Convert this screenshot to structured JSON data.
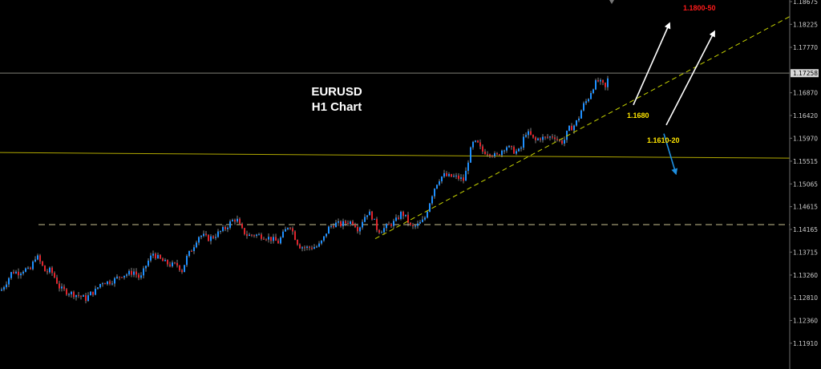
{
  "page": {
    "title_line1": "EURUSD",
    "title_line2": "H1 Chart"
  },
  "annotations": {
    "target_label": "1.1800-50",
    "support_label_1": "1.1680",
    "support_label_2": "1.1610-20"
  },
  "colors": {
    "background": "#000000",
    "bull_candle": "#1e90ff",
    "bear_candle": "#e0242c",
    "wick": "#dddddd",
    "trendline": "#c8d400",
    "resistance_line": "#b0a800",
    "dashed_support": "#c8c090",
    "current_price_line": "#808078",
    "target_label": "#ff1a1a",
    "support_label": "#ffe600",
    "arrow_up": "#ffffff",
    "arrow_down": "#1e8fe0",
    "axis_text": "#d0d0d0"
  },
  "chart_data": {
    "type": "candlestick",
    "symbol": "EURUSD",
    "timeframe": "H1",
    "ylim": [
      1.1167,
      1.18675
    ],
    "y_tick_labels": [
      "1.18675",
      "1.18225",
      "1.17770",
      "1.16870",
      "1.16420",
      "1.15970",
      "1.15515",
      "1.15065",
      "1.14615",
      "1.14165",
      "1.13715",
      "1.13260",
      "1.12810",
      "1.12360",
      "1.11910"
    ],
    "current_price": "1.17258",
    "horizontal_levels": [
      {
        "name": "current-price",
        "value": 1.1726,
        "style": "solid"
      },
      {
        "name": "resistance",
        "value": 1.1567,
        "style": "solid"
      },
      {
        "name": "support",
        "value": 1.1426,
        "style": "dashed"
      }
    ],
    "trendline": {
      "from_price": 1.1398,
      "to_price": 1.1838,
      "style": "dashed"
    },
    "projections": [
      {
        "name": "arrow-up-1",
        "from_price": 1.1663,
        "to_price": 1.1824
      },
      {
        "name": "arrow-up-2",
        "from_price": 1.1623,
        "to_price": 1.1808
      },
      {
        "name": "arrow-down",
        "from_price": 1.1606,
        "to_price": 1.1527
      }
    ],
    "price_path": [
      [
        0,
        1.1295
      ],
      [
        8,
        1.1315
      ],
      [
        14,
        1.1333
      ],
      [
        22,
        1.1331
      ],
      [
        30,
        1.1338
      ],
      [
        36,
        1.1333
      ],
      [
        44,
        1.1366
      ],
      [
        50,
        1.1349
      ],
      [
        56,
        1.1331
      ],
      [
        62,
        1.1336
      ],
      [
        68,
        1.1319
      ],
      [
        74,
        1.1299
      ],
      [
        82,
        1.1293
      ],
      [
        90,
        1.1289
      ],
      [
        98,
        1.1285
      ],
      [
        106,
        1.1279
      ],
      [
        112,
        1.1289
      ],
      [
        118,
        1.1295
      ],
      [
        126,
        1.1313
      ],
      [
        134,
        1.1312
      ],
      [
        142,
        1.1317
      ],
      [
        150,
        1.1326
      ],
      [
        158,
        1.1328
      ],
      [
        166,
        1.1333
      ],
      [
        174,
        1.1318
      ],
      [
        182,
        1.1349
      ],
      [
        190,
        1.1369
      ],
      [
        196,
        1.136
      ],
      [
        204,
        1.1351
      ],
      [
        212,
        1.1346
      ],
      [
        220,
        1.1346
      ],
      [
        226,
        1.1335
      ],
      [
        232,
        1.1361
      ],
      [
        240,
        1.1382
      ],
      [
        246,
        1.1403
      ],
      [
        252,
        1.1404
      ],
      [
        258,
        1.1398
      ],
      [
        264,
        1.1401
      ],
      [
        272,
        1.141
      ],
      [
        280,
        1.1419
      ],
      [
        288,
        1.1433
      ],
      [
        294,
        1.1438
      ],
      [
        300,
        1.1416
      ],
      [
        308,
        1.1404
      ],
      [
        316,
        1.1406
      ],
      [
        324,
        1.1404
      ],
      [
        332,
        1.1401
      ],
      [
        338,
        1.1397
      ],
      [
        346,
        1.1391
      ],
      [
        354,
        1.1412
      ],
      [
        360,
        1.1428
      ],
      [
        366,
        1.1404
      ],
      [
        372,
        1.1384
      ],
      [
        380,
        1.138
      ],
      [
        388,
        1.1381
      ],
      [
        396,
        1.1383
      ],
      [
        402,
        1.1396
      ],
      [
        408,
        1.1418
      ],
      [
        416,
        1.1428
      ],
      [
        424,
        1.1426
      ],
      [
        432,
        1.1431
      ],
      [
        440,
        1.1431
      ],
      [
        446,
        1.1416
      ],
      [
        452,
        1.1438
      ],
      [
        458,
        1.1451
      ],
      [
        464,
        1.144
      ],
      [
        470,
        1.1414
      ],
      [
        476,
        1.1416
      ],
      [
        484,
        1.1425
      ],
      [
        492,
        1.1432
      ],
      [
        500,
        1.145
      ],
      [
        506,
        1.1438
      ],
      [
        512,
        1.1419
      ],
      [
        520,
        1.1425
      ],
      [
        528,
        1.1435
      ],
      [
        534,
        1.1466
      ],
      [
        540,
        1.1496
      ],
      [
        546,
        1.1515
      ],
      [
        552,
        1.1524
      ],
      [
        558,
        1.1521
      ],
      [
        564,
        1.1521
      ],
      [
        572,
        1.1518
      ],
      [
        578,
        1.1513
      ],
      [
        582,
        1.1547
      ],
      [
        588,
        1.1586
      ],
      [
        594,
        1.1588
      ],
      [
        600,
        1.1571
      ],
      [
        606,
        1.157
      ],
      [
        612,
        1.1567
      ],
      [
        618,
        1.156
      ],
      [
        624,
        1.1572
      ],
      [
        630,
        1.1582
      ],
      [
        636,
        1.1575
      ],
      [
        642,
        1.157
      ],
      [
        648,
        1.1572
      ],
      [
        654,
        1.1609
      ],
      [
        660,
        1.1604
      ],
      [
        666,
        1.1591
      ],
      [
        672,
        1.1598
      ],
      [
        678,
        1.1597
      ],
      [
        684,
        1.1599
      ],
      [
        690,
        1.1602
      ],
      [
        696,
        1.1591
      ],
      [
        702,
        1.159
      ],
      [
        708,
        1.1615
      ],
      [
        714,
        1.162
      ],
      [
        720,
        1.1634
      ],
      [
        726,
        1.1661
      ],
      [
        732,
        1.1674
      ],
      [
        738,
        1.1697
      ],
      [
        744,
        1.1711
      ],
      [
        750,
        1.1704
      ],
      [
        754,
        1.1696
      ],
      [
        758,
        1.1719
      ]
    ]
  }
}
